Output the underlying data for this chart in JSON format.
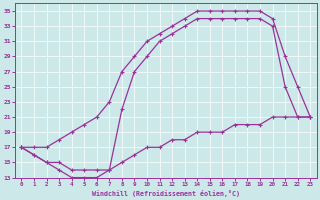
{
  "xlabel": "Windchill (Refroidissement éolien,°C)",
  "bg_color": "#cce8e8",
  "line_color": "#993399",
  "xlim": [
    -0.5,
    23.5
  ],
  "ylim": [
    13,
    36
  ],
  "xticks": [
    0,
    1,
    2,
    3,
    4,
    5,
    6,
    7,
    8,
    9,
    10,
    11,
    12,
    13,
    14,
    15,
    16,
    17,
    18,
    19,
    20,
    21,
    22,
    23
  ],
  "yticks": [
    13,
    15,
    17,
    19,
    21,
    23,
    25,
    27,
    29,
    31,
    33,
    35
  ],
  "curve_top_x": [
    0,
    1,
    2,
    3,
    4,
    5,
    6,
    7,
    8,
    9,
    10,
    11,
    12,
    13,
    14,
    15,
    16,
    17,
    18,
    19,
    20,
    21,
    22,
    23
  ],
  "curve_top_y": [
    17,
    17,
    17,
    18,
    19,
    20,
    21,
    23,
    27,
    29,
    31,
    32,
    33,
    34,
    35,
    35,
    35,
    35,
    35,
    35,
    34,
    29,
    25,
    21
  ],
  "curve_mid_x": [
    0,
    1,
    2,
    3,
    4,
    5,
    6,
    7,
    8,
    9,
    10,
    11,
    12,
    13,
    14,
    15,
    16,
    17,
    18,
    19,
    20,
    21,
    22,
    23
  ],
  "curve_mid_y": [
    17,
    16,
    15,
    15,
    14,
    14,
    14,
    14,
    22,
    27,
    29,
    31,
    32,
    33,
    34,
    34,
    34,
    34,
    34,
    34,
    33,
    25,
    21,
    21
  ],
  "curve_bot_x": [
    0,
    1,
    2,
    3,
    4,
    5,
    6,
    7,
    8,
    9,
    10,
    11,
    12,
    13,
    14,
    15,
    16,
    17,
    18,
    19,
    20,
    21,
    22,
    23
  ],
  "curve_bot_y": [
    17,
    16,
    15,
    14,
    13,
    13,
    13,
    14,
    15,
    16,
    17,
    17,
    18,
    18,
    19,
    19,
    19,
    20,
    20,
    20,
    21,
    21,
    21,
    21
  ]
}
